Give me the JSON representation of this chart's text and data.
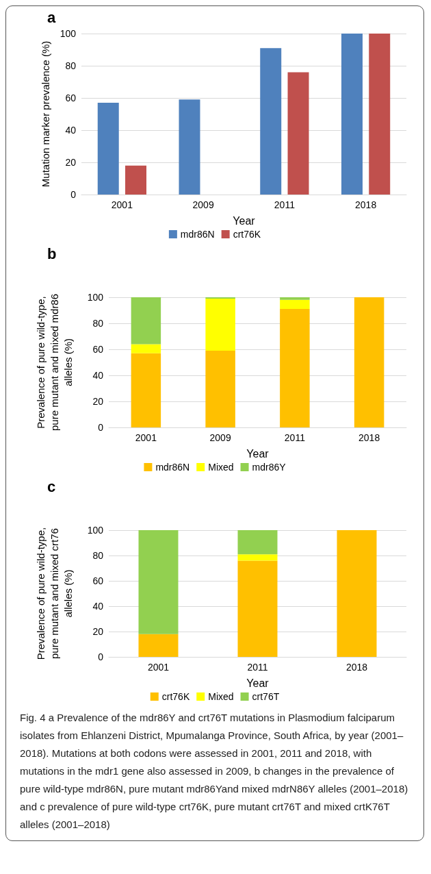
{
  "chart_data": [
    {
      "type": "bar",
      "title": "a",
      "xlabel": "Year",
      "ylabel": "Mutation marker prevalence (%)",
      "categories": [
        "2001",
        "2009",
        "2011",
        "2018"
      ],
      "series": [
        {
          "name": "mdr86N",
          "color": "#4f81bd",
          "values": [
            57,
            59,
            91,
            100
          ]
        },
        {
          "name": "crt76K",
          "color": "#c0504d",
          "values": [
            18,
            null,
            76,
            100
          ]
        }
      ],
      "ylim": [
        0,
        100
      ],
      "yticks": [
        0,
        20,
        40,
        60,
        80,
        100
      ],
      "grid": "y",
      "legend": "bottom"
    },
    {
      "type": "bar",
      "title": "b",
      "xlabel": "Year",
      "ylabel": "Prevalence of pure wild-type,\npure mutant and mixed mdr86\nalleles (%)",
      "categories": [
        "2001",
        "2009",
        "2011",
        "2018"
      ],
      "stacked": true,
      "series": [
        {
          "name": "mdr86N",
          "color": "#ffc000",
          "values": [
            57,
            59,
            91,
            100
          ]
        },
        {
          "name": "Mixed",
          "color": "#ffff00",
          "values": [
            7,
            40,
            7,
            0
          ]
        },
        {
          "name": "mdr86Y",
          "color": "#92d050",
          "values": [
            36,
            1,
            2,
            0
          ]
        }
      ],
      "ylim": [
        0,
        100
      ],
      "yticks": [
        0,
        20,
        40,
        60,
        80,
        100
      ],
      "grid": "y",
      "legend": "bottom"
    },
    {
      "type": "bar",
      "title": "c",
      "xlabel": "Year",
      "ylabel": "Prevalence of pure wild-type,\npure mutant and mixed crt76\nalleles (%)",
      "categories": [
        "2001",
        "2011",
        "2018"
      ],
      "stacked": true,
      "series": [
        {
          "name": "crt76K",
          "color": "#ffc000",
          "values": [
            18,
            76,
            100
          ]
        },
        {
          "name": "Mixed",
          "color": "#ffff00",
          "values": [
            0,
            5,
            0
          ]
        },
        {
          "name": "crt76T",
          "color": "#92d050",
          "values": [
            82,
            19,
            0
          ]
        }
      ],
      "ylim": [
        0,
        100
      ],
      "yticks": [
        0,
        20,
        40,
        60,
        80,
        100
      ],
      "grid": "y",
      "legend": "bottom",
      "annotations": [
        "Fig. 4 a Prevalence of the mdr86Y and crt76T mutations in Plasmodium falciparum isolates from Ehlanzeni District, Mpumalanga Province, South Africa, by year (2001–2018). Mutations at both codons were assessed in 2001, 2011 and 2018, with mutations in the mdr1 gene also assessed in 2009, b changes in the prevalence of pure wild-type mdr86N, pure mutant mdr86Yand mixed mdrN86Y alleles (2001–2018) and c prevalence of pure wild-type crt76K, pure mutant crt76T and mixed crtK76T alleles (2001–2018)"
      ]
    }
  ]
}
